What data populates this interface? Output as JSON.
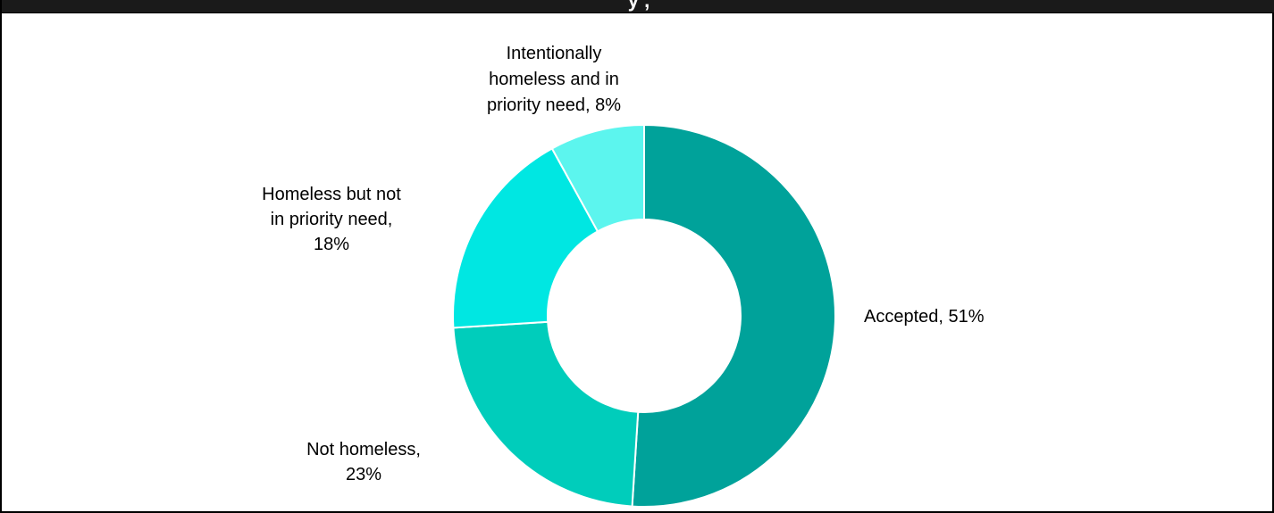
{
  "header": {
    "title_fragment": "y                    ,"
  },
  "chart_data": {
    "type": "pie",
    "donut": true,
    "title": "",
    "slices": [
      {
        "label": "Accepted",
        "value": 51,
        "display": "Accepted, 51%",
        "color": "#00a29a",
        "label_lines": [
          "Accepted, 51%"
        ]
      },
      {
        "label": "Not homeless",
        "value": 23,
        "display": "Not homeless, 23%",
        "color": "#00cdbb",
        "label_lines": [
          "Not homeless,",
          "23%"
        ]
      },
      {
        "label": "Homeless but not in priority need",
        "value": 18,
        "display": "Homeless but not in priority need, 18%",
        "color": "#00e7e2",
        "label_lines": [
          "Homeless but not",
          "in priority need,",
          "18%"
        ]
      },
      {
        "label": "Intentionally homeless and in priority need",
        "value": 8,
        "display": "Intentionally homeless and in priority need, 8%",
        "color": "#5cf5ee",
        "label_lines": [
          "Intentionally",
          "homeless and in",
          "priority need, 8%"
        ]
      }
    ],
    "start_angle_deg": 0,
    "direction": "clockwise"
  }
}
